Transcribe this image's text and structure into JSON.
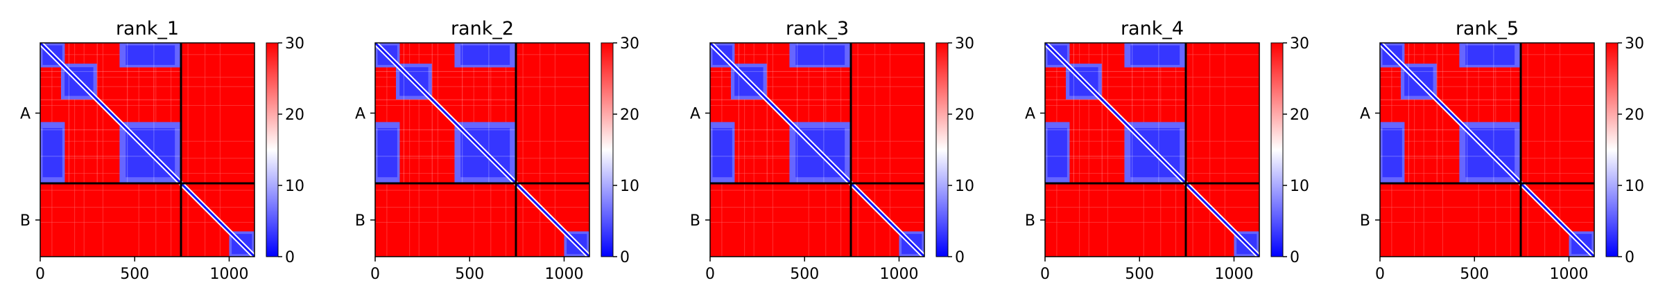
{
  "chart_data": [
    {
      "type": "heatmap",
      "title": "rank_1",
      "xlabel": "",
      "ylabel": "",
      "xlim": [
        0,
        1134
      ],
      "ylim": [
        1134,
        0
      ],
      "x_ticks": [
        0,
        500,
        1000
      ],
      "chain_labels": [
        "A",
        "B"
      ],
      "chain_boundaries": [
        0,
        745,
        1134
      ],
      "colorbar": {
        "min": 0,
        "max": 30,
        "ticks": [
          0,
          10,
          20,
          30
        ],
        "colors": [
          "#0000ff",
          "#ffffff",
          "#ff0000"
        ]
      },
      "low_error_blocks": [
        [
          0,
          130,
          0,
          130
        ],
        [
          110,
          300,
          110,
          300
        ],
        [
          420,
          745,
          420,
          745
        ],
        [
          0,
          130,
          420,
          745
        ],
        [
          420,
          745,
          0,
          130
        ],
        [
          0,
          745,
          0,
          745,
          "diag"
        ],
        [
          1000,
          1134,
          1000,
          1134
        ]
      ],
      "inter_chain_low_error": false
    },
    {
      "type": "heatmap",
      "title": "rank_2",
      "xlabel": "",
      "ylabel": "",
      "xlim": [
        0,
        1134
      ],
      "ylim": [
        1134,
        0
      ],
      "x_ticks": [
        0,
        500,
        1000
      ],
      "chain_labels": [
        "A",
        "B"
      ],
      "chain_boundaries": [
        0,
        745,
        1134
      ],
      "colorbar": {
        "min": 0,
        "max": 30,
        "ticks": [
          0,
          10,
          20,
          30
        ],
        "colors": [
          "#0000ff",
          "#ffffff",
          "#ff0000"
        ]
      },
      "low_error_blocks": [
        [
          0,
          130,
          0,
          130
        ],
        [
          110,
          300,
          110,
          300
        ],
        [
          420,
          745,
          420,
          745
        ],
        [
          0,
          130,
          420,
          745
        ],
        [
          420,
          745,
          0,
          130
        ],
        [
          1000,
          1134,
          1000,
          1134
        ]
      ],
      "inter_chain_low_error": false
    },
    {
      "type": "heatmap",
      "title": "rank_3",
      "xlabel": "",
      "ylabel": "",
      "xlim": [
        0,
        1134
      ],
      "ylim": [
        1134,
        0
      ],
      "x_ticks": [
        0,
        500,
        1000
      ],
      "chain_labels": [
        "A",
        "B"
      ],
      "chain_boundaries": [
        0,
        745,
        1134
      ],
      "colorbar": {
        "min": 0,
        "max": 30,
        "ticks": [
          0,
          10,
          20,
          30
        ],
        "colors": [
          "#0000ff",
          "#ffffff",
          "#ff0000"
        ]
      },
      "low_error_blocks": [
        [
          0,
          130,
          0,
          130
        ],
        [
          110,
          300,
          110,
          300
        ],
        [
          420,
          745,
          420,
          745
        ],
        [
          0,
          130,
          420,
          745
        ],
        [
          420,
          745,
          0,
          130
        ],
        [
          1000,
          1134,
          1000,
          1134
        ]
      ],
      "inter_chain_low_error": false
    },
    {
      "type": "heatmap",
      "title": "rank_4",
      "xlabel": "",
      "ylabel": "",
      "xlim": [
        0,
        1134
      ],
      "ylim": [
        1134,
        0
      ],
      "x_ticks": [
        0,
        500,
        1000
      ],
      "chain_labels": [
        "A",
        "B"
      ],
      "chain_boundaries": [
        0,
        745,
        1134
      ],
      "colorbar": {
        "min": 0,
        "max": 30,
        "ticks": [
          0,
          10,
          20,
          30
        ],
        "colors": [
          "#0000ff",
          "#ffffff",
          "#ff0000"
        ]
      },
      "low_error_blocks": [
        [
          0,
          130,
          0,
          130
        ],
        [
          110,
          300,
          110,
          300
        ],
        [
          420,
          745,
          420,
          745
        ],
        [
          0,
          130,
          420,
          745
        ],
        [
          420,
          745,
          0,
          130
        ],
        [
          1000,
          1134,
          1000,
          1134
        ]
      ],
      "inter_chain_low_error": false
    },
    {
      "type": "heatmap",
      "title": "rank_5",
      "xlabel": "",
      "ylabel": "",
      "xlim": [
        0,
        1134
      ],
      "ylim": [
        1134,
        0
      ],
      "x_ticks": [
        0,
        500,
        1000
      ],
      "chain_labels": [
        "A",
        "B"
      ],
      "chain_boundaries": [
        0,
        745,
        1134
      ],
      "colorbar": {
        "min": 0,
        "max": 30,
        "ticks": [
          0,
          10,
          20,
          30
        ],
        "colors": [
          "#0000ff",
          "#ffffff",
          "#ff0000"
        ]
      },
      "low_error_blocks": [
        [
          0,
          130,
          0,
          130
        ],
        [
          110,
          300,
          110,
          300
        ],
        [
          420,
          745,
          420,
          745
        ],
        [
          0,
          130,
          420,
          745
        ],
        [
          420,
          745,
          0,
          130
        ],
        [
          1000,
          1134,
          1000,
          1134
        ]
      ],
      "inter_chain_low_error": false
    }
  ]
}
